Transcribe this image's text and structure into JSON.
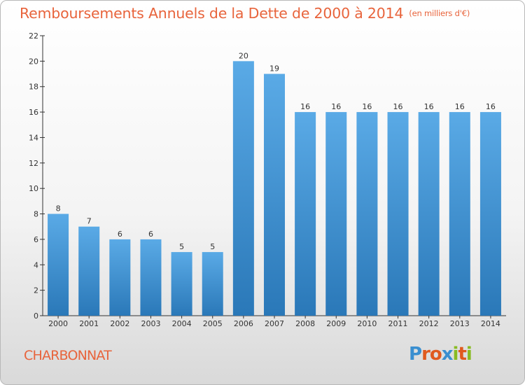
{
  "chart_data": {
    "type": "bar",
    "title": "Remboursements Annuels de la Dette de 2000 à 2014",
    "unit_note": "(en milliers d'€)",
    "categories": [
      "2000",
      "2001",
      "2002",
      "2003",
      "2004",
      "2005",
      "2006",
      "2007",
      "2008",
      "2009",
      "2010",
      "2011",
      "2012",
      "2013",
      "2014"
    ],
    "values": [
      8,
      7,
      6,
      6,
      5,
      5,
      20,
      19,
      16,
      16,
      16,
      16,
      16,
      16,
      16
    ],
    "ylim": [
      0,
      22
    ],
    "yticks": [
      0,
      2,
      4,
      6,
      8,
      10,
      12,
      14,
      16,
      18,
      20,
      22
    ],
    "xlabel": "",
    "ylabel": "",
    "grid": false
  },
  "commune": "CHARBONNAT",
  "logo": {
    "letters": [
      "P",
      "r",
      "o",
      "x",
      "i",
      "t",
      "i"
    ],
    "colors": [
      "#3a8fd0",
      "#e05a1e",
      "#e05a1e",
      "#3a8fd0",
      "#88bb22",
      "#e05a1e",
      "#88bb22"
    ]
  },
  "colors": {
    "bar_top": "#5aaae6",
    "bar_bottom": "#2a78b8",
    "title": "#e8643c",
    "axis": "#333333"
  }
}
